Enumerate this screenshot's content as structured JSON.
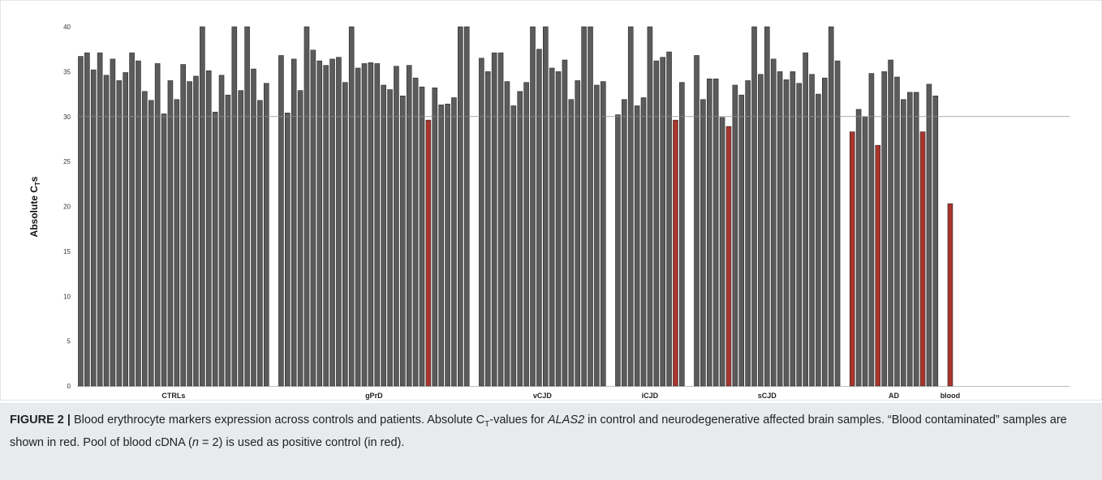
{
  "chart_data": {
    "type": "bar",
    "ylabel": "Absolute C",
    "ylabel_sub": "T",
    "ylabel_suffix": "s",
    "ylim": [
      0,
      40
    ],
    "yticks": [
      0,
      5,
      10,
      15,
      20,
      25,
      30,
      35,
      40
    ],
    "reference_line": 30,
    "grid": false,
    "colors": {
      "normal": "#5b5b5b",
      "contaminated": "#a8352c",
      "bar_edge": "#2b2b2b"
    },
    "groups": [
      {
        "name": "CTRLs",
        "values": [
          36.7,
          37.1,
          35.2,
          37.1,
          34.6,
          36.4,
          34.0,
          34.9,
          37.1,
          36.2,
          32.8,
          31.8,
          35.9,
          30.3,
          34.0,
          31.9,
          35.8,
          33.9,
          34.5,
          40.0,
          35.1,
          30.5,
          34.6,
          32.4,
          40.0,
          32.9,
          40.0,
          35.3,
          31.8,
          33.7
        ],
        "contaminated": []
      },
      {
        "name": "gPrD",
        "values": [
          36.8,
          30.4,
          36.4,
          32.9,
          40.0,
          37.4,
          36.2,
          35.7,
          36.4,
          36.6,
          33.8,
          40.0,
          35.4,
          35.9,
          36.0,
          35.9,
          33.5,
          33.0,
          35.6,
          32.3,
          35.7,
          34.3,
          33.3,
          29.6,
          33.2,
          31.3,
          31.4,
          32.1,
          40.0,
          40.0
        ],
        "contaminated": [
          23
        ]
      },
      {
        "name": "vCJD",
        "values": [
          36.5,
          35.0,
          37.1,
          37.1,
          33.9,
          31.2,
          32.8,
          33.8,
          40.0,
          37.5,
          40.0,
          35.4,
          35.0,
          36.3,
          31.9,
          34.0,
          40.0,
          40.0,
          33.5,
          33.9
        ],
        "contaminated": []
      },
      {
        "name": "iCJD",
        "values": [
          30.2,
          31.9,
          40.0,
          31.2,
          32.1,
          40.0,
          36.2,
          36.6,
          37.2,
          29.6,
          33.8
        ],
        "contaminated": [
          9
        ]
      },
      {
        "name": "sCJD",
        "values": [
          36.8,
          31.9,
          34.2,
          34.2,
          29.9,
          28.9,
          33.5,
          32.4,
          34.0,
          40.0,
          34.7,
          40.0,
          36.4,
          35.0,
          34.1,
          35.0,
          33.7,
          37.1,
          34.7,
          32.5,
          34.3,
          40.0,
          36.2
        ],
        "contaminated": [
          5
        ]
      },
      {
        "name": "AD",
        "values": [
          28.3,
          30.8,
          30.0,
          34.8,
          26.8,
          35.0,
          36.3,
          34.4,
          31.9,
          32.7,
          32.7,
          28.3,
          33.6,
          32.3
        ],
        "contaminated": [
          0,
          4,
          11
        ]
      },
      {
        "name": "blood",
        "values": [
          20.3
        ],
        "contaminated": [
          0
        ]
      }
    ]
  },
  "caption": {
    "label": "FIGURE 2 |",
    "part1": " Blood erythrocyte markers expression across controls and patients. Absolute C",
    "sub": "T",
    "part2": "-values for ",
    "gene": "ALAS2",
    "part3": " in control and neurodegenerative affected brain samples. “Blood contaminated” samples are shown in red. Pool of blood cDNA (",
    "n_var": "n",
    "part4": " = 2) is used as positive control (in red)."
  }
}
